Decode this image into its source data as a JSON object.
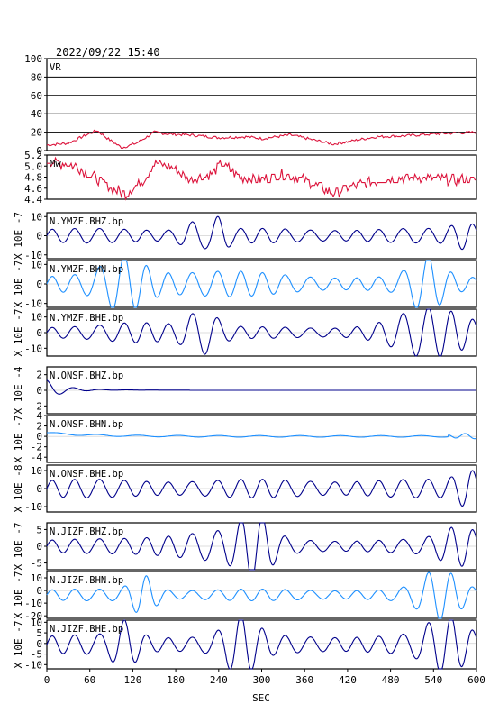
{
  "header": {
    "datetime": "2022/09/22  15:40"
  },
  "chart_data": {
    "type": "line",
    "xlabel": "SEC",
    "xlim": [
      0,
      600
    ],
    "xticks": [
      0,
      60,
      120,
      180,
      240,
      300,
      360,
      420,
      480,
      540,
      600
    ],
    "colors": {
      "red": "#dc143c",
      "navy": "#00008b",
      "blue": "#1e90ff",
      "frame": "#000000"
    },
    "panels": [
      {
        "id": "vr",
        "label": "VR",
        "ylim": [
          0,
          100
        ],
        "yticks": [
          "100",
          "80",
          "60",
          "40",
          "20",
          "0"
        ],
        "ytickvals": [
          100,
          80,
          60,
          40,
          20,
          0
        ],
        "hgrid": true,
        "color": "red",
        "kind": "vr",
        "points": [
          [
            0,
            6
          ],
          [
            30,
            8
          ],
          [
            55,
            17
          ],
          [
            70,
            22
          ],
          [
            85,
            13
          ],
          [
            105,
            3
          ],
          [
            125,
            8
          ],
          [
            140,
            15
          ],
          [
            150,
            20
          ],
          [
            170,
            18
          ],
          [
            200,
            17
          ],
          [
            240,
            14
          ],
          [
            280,
            15
          ],
          [
            300,
            13
          ],
          [
            340,
            17
          ],
          [
            370,
            12
          ],
          [
            400,
            7
          ],
          [
            430,
            11
          ],
          [
            460,
            15
          ],
          [
            500,
            16
          ],
          [
            540,
            18
          ],
          [
            570,
            19
          ],
          [
            600,
            20
          ]
        ]
      },
      {
        "id": "mw",
        "label": "Mw",
        "ylim": [
          4.4,
          5.2
        ],
        "yticks": [
          "5.2",
          "5.0",
          "4.8",
          "4.6",
          "4.4"
        ],
        "ytickvals": [
          5.2,
          5.0,
          4.8,
          4.6,
          4.4
        ],
        "hgrid": false,
        "color": "red",
        "kind": "mw",
        "points": [
          [
            0,
            5.1
          ],
          [
            40,
            5.0
          ],
          [
            60,
            4.85
          ],
          [
            90,
            4.6
          ],
          [
            110,
            4.5
          ],
          [
            135,
            4.75
          ],
          [
            150,
            5.05
          ],
          [
            170,
            5.0
          ],
          [
            200,
            4.75
          ],
          [
            230,
            4.85
          ],
          [
            245,
            5.05
          ],
          [
            270,
            4.8
          ],
          [
            300,
            4.75
          ],
          [
            330,
            4.85
          ],
          [
            370,
            4.7
          ],
          [
            400,
            4.5
          ],
          [
            430,
            4.65
          ],
          [
            470,
            4.75
          ],
          [
            520,
            4.8
          ],
          [
            560,
            4.75
          ],
          [
            600,
            4.75
          ]
        ]
      },
      {
        "id": "ymzf-bhz",
        "label": "N.YMZF.BHZ.bp",
        "ylim": [
          -12,
          12
        ],
        "yticks": [
          "10",
          "0",
          "-10"
        ],
        "ytickvals": [
          10,
          0,
          -10
        ],
        "color": "navy",
        "kind": "wave",
        "amp": 0.32,
        "burst": [
          [
            205,
            15,
            0.5
          ],
          [
            240,
            10,
            0.6
          ],
          [
            585,
            15,
            0.4
          ]
        ],
        "scalelabel": "X 10E -7"
      },
      {
        "id": "ymzf-bhn",
        "label": "N.YMZF.BHN.bp",
        "ylim": [
          -12,
          12
        ],
        "yticks": [
          "10",
          "0",
          "-10"
        ],
        "ytickvals": [
          10,
          0,
          -10
        ],
        "color": "blue",
        "kind": "wave",
        "amp": 0.35,
        "burst": [
          [
            110,
            25,
            0.9
          ],
          [
            530,
            20,
            0.9
          ],
          [
            200,
            80,
            0.3
          ]
        ],
        "scalelabel": "X 10E -7"
      },
      {
        "id": "ymzf-bhe",
        "label": "N.YMZF.BHE.bp",
        "ylim": [
          -15,
          15
        ],
        "yticks": [
          "10",
          "0",
          "-10"
        ],
        "ytickvals": [
          10,
          0,
          -10
        ],
        "color": "navy",
        "kind": "wave",
        "amp": 0.25,
        "burst": [
          [
            215,
            20,
            0.9
          ],
          [
            540,
            50,
            0.85
          ],
          [
            140,
            40,
            0.3
          ]
        ],
        "scalelabel": "X 10E -7"
      },
      {
        "id": "onsf-bhz",
        "label": "N.ONSF.BHZ.bp",
        "ylim": [
          -3,
          3
        ],
        "yticks": [
          "2",
          "0",
          "-2"
        ],
        "ytickvals": [
          2,
          0,
          -2
        ],
        "color": "navy",
        "kind": "decay",
        "scalelabel": "X 10E -4"
      },
      {
        "id": "onsf-bhn",
        "label": "N.ONSF.BHN.bp",
        "ylim": [
          -5,
          4
        ],
        "yticks": [
          "4",
          "2",
          "0",
          "-2",
          "-4"
        ],
        "ytickvals": [
          4,
          2,
          0,
          -2,
          -4
        ],
        "color": "blue",
        "kind": "flat",
        "scalelabel": "X 10E -7"
      },
      {
        "id": "onsf-bhe",
        "label": "N.ONSF.BHE.bp",
        "ylim": [
          -13,
          13
        ],
        "yticks": [
          "10",
          "0",
          "-10"
        ],
        "ytickvals": [
          10,
          0,
          -10
        ],
        "color": "navy",
        "kind": "wave",
        "amp": 0.4,
        "burst": [
          [
            590,
            15,
            0.6
          ]
        ],
        "scalelabel": "X 10E -8"
      },
      {
        "id": "jizf-bhz",
        "label": "N.JIZF.BHZ.bp",
        "ylim": [
          -7,
          7
        ],
        "yticks": [
          "5",
          "0",
          "-5"
        ],
        "ytickvals": [
          5,
          0,
          -5
        ],
        "color": "navy",
        "kind": "wave",
        "amp": 0.3,
        "burst": [
          [
            290,
            20,
            0.95
          ],
          [
            580,
            25,
            0.7
          ],
          [
            220,
            60,
            0.45
          ]
        ],
        "scalelabel": "X 10E -7"
      },
      {
        "id": "jizf-bhn",
        "label": "N.JIZF.BHN.bp",
        "ylim": [
          -22,
          15
        ],
        "yticks": [
          "10",
          "0",
          "-10",
          "-20"
        ],
        "ytickvals": [
          10,
          0,
          -10,
          -20
        ],
        "color": "blue",
        "kind": "wave",
        "amp": 0.25,
        "burst": [
          [
            135,
            15,
            0.85
          ],
          [
            550,
            25,
            0.9
          ]
        ],
        "scalelabel": "X 10E -7"
      },
      {
        "id": "jizf-bhe",
        "label": "N.JIZF.BHE.bp",
        "ylim": [
          -12,
          11
        ],
        "yticks": [
          "10",
          "5",
          "0",
          "-5",
          "-10"
        ],
        "ytickvals": [
          10,
          5,
          0,
          -5,
          -10
        ],
        "color": "navy",
        "kind": "wave",
        "amp": 0.4,
        "burst": [
          [
            110,
            15,
            0.75
          ],
          [
            270,
            20,
            0.9
          ],
          [
            560,
            25,
            0.9
          ]
        ],
        "scalelabel": "X 10E -7"
      }
    ]
  }
}
